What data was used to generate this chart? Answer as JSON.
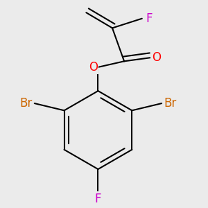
{
  "bg_color": "#ebebeb",
  "bond_color": "#000000",
  "bond_width": 1.5,
  "atom_colors": {
    "F": "#cc00cc",
    "O": "#ff0000",
    "Br": "#cc6600",
    "C": "#000000"
  },
  "font_size": 12
}
